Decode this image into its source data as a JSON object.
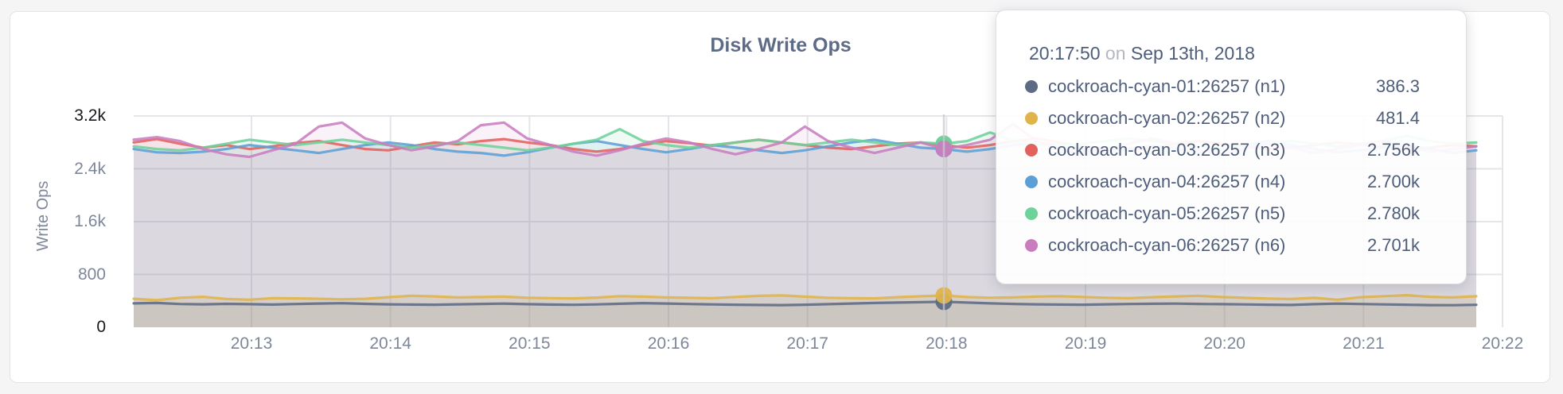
{
  "theme": {
    "page_bg": "#f5f5f6",
    "card_bg": "#ffffff",
    "card_border": "#e3e4e7",
    "title_color": "#5e6b87",
    "axis_text": "#7e8799",
    "axis_text_strong": "#17191e",
    "gridline": "#e4e5e8",
    "hover_line": "#c9cacd",
    "tooltip_bg": "rgba(255,255,255,0.93)",
    "tooltip_text": "#4e5d7a",
    "tooltip_muted": "#b4b8c0"
  },
  "chart": {
    "title": "Disk Write Ops",
    "y_axis_label": "Write Ops"
  },
  "tooltip": {
    "time": "20:17:50",
    "conjunction": "on",
    "date": "Sep 13th, 2018",
    "rows": [
      {
        "series": "cockroach-cyan-01:26257 (n1)",
        "value": "386.3",
        "color": "#5d6b85"
      },
      {
        "series": "cockroach-cyan-02:26257 (n2)",
        "value": "481.4",
        "color": "#e0b44a"
      },
      {
        "series": "cockroach-cyan-03:26257 (n3)",
        "value": "2.756k",
        "color": "#e2615e"
      },
      {
        "series": "cockroach-cyan-04:26257 (n4)",
        "value": "2.700k",
        "color": "#5c9fd6"
      },
      {
        "series": "cockroach-cyan-05:26257 (n5)",
        "value": "2.780k",
        "color": "#6ed29b"
      },
      {
        "series": "cockroach-cyan-06:26257 (n6)",
        "value": "2.701k",
        "color": "#c97dbf"
      }
    ]
  },
  "chart_data": {
    "type": "line",
    "title": "Disk Write Ops",
    "xlabel": "",
    "ylabel": "Write Ops",
    "ylim": [
      0,
      3200
    ],
    "grid": true,
    "legend_position": "tooltip-overlay",
    "x_ticks": [
      "20:13",
      "20:14",
      "20:15",
      "20:16",
      "20:17",
      "20:18",
      "20:19",
      "20:20",
      "20:21",
      "20:22"
    ],
    "y_ticks": [
      {
        "label": "3.2k",
        "value": 3200,
        "strong": true
      },
      {
        "label": "2.4k",
        "value": 2400,
        "strong": false
      },
      {
        "label": "1.6k",
        "value": 1600,
        "strong": false
      },
      {
        "label": "800",
        "value": 800,
        "strong": false
      },
      {
        "label": "0",
        "value": 0,
        "strong": true
      }
    ],
    "hover_index": 35,
    "hover_time": "20:17:50",
    "series": [
      {
        "id": "n1",
        "name": "cockroach-cyan-01:26257 (n1)",
        "color": "#5d6b85",
        "hover_value": 386.3,
        "values": [
          362,
          368,
          352,
          348,
          355,
          350,
          344,
          352,
          360,
          365,
          355,
          348,
          344,
          342,
          348,
          354,
          358,
          350,
          344,
          340,
          346,
          356,
          366,
          360,
          352,
          346,
          342,
          338,
          336,
          342,
          350,
          360,
          368,
          374,
          380,
          386.3,
          374,
          362,
          354,
          348,
          344,
          342,
          348,
          352,
          356,
          358,
          354,
          350,
          346,
          342,
          338,
          350,
          358,
          352,
          346,
          342,
          336,
          334,
          340
        ]
      },
      {
        "id": "n2",
        "name": "cockroach-cyan-02:26257 (n2)",
        "color": "#e0b44a",
        "hover_value": 481.4,
        "values": [
          432,
          410,
          448,
          462,
          430,
          418,
          442,
          438,
          432,
          424,
          432,
          456,
          478,
          468,
          452,
          458,
          464,
          448,
          442,
          438,
          450,
          472,
          464,
          452,
          446,
          442,
          460,
          476,
          482,
          464,
          448,
          442,
          438,
          456,
          470,
          481.4,
          458,
          448,
          454,
          466,
          472,
          460,
          448,
          442,
          456,
          468,
          478,
          458,
          446,
          436,
          428,
          446,
          418,
          456,
          472,
          486,
          462,
          452,
          470
        ]
      },
      {
        "id": "n3",
        "name": "cockroach-cyan-03:26257 (n3)",
        "color": "#e2615e",
        "hover_value": 2756,
        "values": [
          2800,
          2850,
          2780,
          2720,
          2760,
          2700,
          2740,
          2790,
          2820,
          2760,
          2700,
          2680,
          2740,
          2800,
          2770,
          2820,
          2850,
          2800,
          2760,
          2700,
          2660,
          2700,
          2760,
          2820,
          2790,
          2750,
          2800,
          2840,
          2800,
          2760,
          2720,
          2700,
          2740,
          2780,
          2800,
          2756,
          2720,
          2760,
          2820,
          2860,
          2800,
          2750,
          2700,
          2680,
          2720,
          2780,
          2820,
          2780,
          2740,
          2700,
          2720,
          2760,
          2800,
          2770,
          2730,
          2690,
          2720,
          2760,
          2740
        ]
      },
      {
        "id": "n4",
        "name": "cockroach-cyan-04:26257 (n4)",
        "color": "#5c9fd6",
        "hover_value": 2700,
        "values": [
          2700,
          2650,
          2640,
          2660,
          2700,
          2760,
          2720,
          2680,
          2640,
          2700,
          2760,
          2800,
          2760,
          2700,
          2660,
          2640,
          2600,
          2650,
          2720,
          2780,
          2820,
          2760,
          2700,
          2650,
          2700,
          2760,
          2720,
          2680,
          2640,
          2680,
          2740,
          2800,
          2840,
          2780,
          2720,
          2700,
          2660,
          2700,
          2760,
          2800,
          2760,
          2700,
          2660,
          2700,
          2750,
          2700,
          2650,
          2700,
          2760,
          2820,
          2760,
          2700,
          2650,
          2680,
          2720,
          2760,
          2700,
          2640,
          2680
        ]
      },
      {
        "id": "n5",
        "name": "cockroach-cyan-05:26257 (n5)",
        "color": "#6ed29b",
        "hover_value": 2780,
        "values": [
          2740,
          2700,
          2680,
          2720,
          2780,
          2840,
          2800,
          2760,
          2800,
          2840,
          2800,
          2760,
          2720,
          2760,
          2800,
          2760,
          2720,
          2680,
          2720,
          2780,
          2840,
          3000,
          2820,
          2760,
          2720,
          2760,
          2800,
          2840,
          2800,
          2760,
          2800,
          2840,
          2800,
          2760,
          2800,
          2780,
          2820,
          2950,
          2820,
          2780,
          2740,
          2780,
          2820,
          2860,
          2820,
          2780,
          2740,
          2700,
          2740,
          2780,
          2820,
          2780,
          2740,
          2780,
          2820,
          2900,
          2820,
          2780,
          2800
        ]
      },
      {
        "id": "n6",
        "name": "cockroach-cyan-06:26257 (n6)",
        "color": "#c97dbf",
        "hover_value": 2701,
        "values": [
          2840,
          2880,
          2820,
          2700,
          2620,
          2580,
          2680,
          2780,
          3040,
          3100,
          2860,
          2760,
          2680,
          2740,
          2820,
          3060,
          3100,
          2860,
          2760,
          2660,
          2600,
          2680,
          2780,
          2860,
          2800,
          2700,
          2620,
          2700,
          2800,
          3040,
          2820,
          2720,
          2640,
          2720,
          2800,
          2701,
          2760,
          2840,
          3080,
          2820,
          2700,
          2620,
          2700,
          2780,
          2860,
          2780,
          2680,
          2620,
          2700,
          2780,
          2720,
          2640,
          2700,
          2760,
          2820,
          2740,
          2660,
          2700,
          2740
        ]
      }
    ]
  }
}
